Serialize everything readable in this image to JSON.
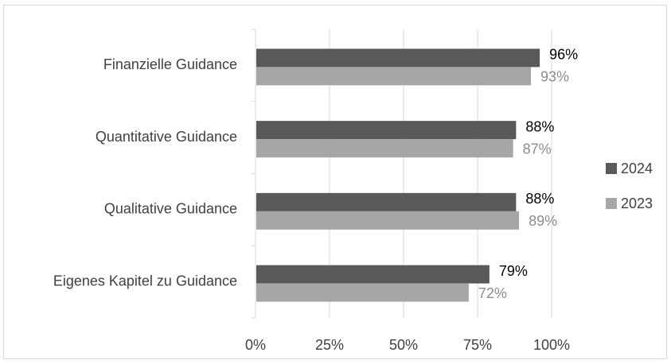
{
  "chart_data": {
    "type": "bar",
    "orientation": "horizontal",
    "categories": [
      "Finanzielle Guidance",
      "Quantitative Guidance",
      "Qualitative Guidance",
      "Eigenes Kapitel zu Guidance"
    ],
    "series": [
      {
        "name": "2024",
        "values": [
          96,
          88,
          88,
          79
        ],
        "value_labels": [
          "96%",
          "88%",
          "88%",
          "79%"
        ],
        "color": "#595959",
        "label_color": "#000000"
      },
      {
        "name": "2023",
        "values": [
          93,
          87,
          89,
          72
        ],
        "value_labels": [
          "93%",
          "87%",
          "89%",
          "72%"
        ],
        "color": "#a6a6a6",
        "label_color": "#8c8c8c"
      }
    ],
    "xlim": [
      0,
      100
    ],
    "x_ticks": [
      "0%",
      "25%",
      "50%",
      "75%",
      "100%"
    ],
    "x_tick_values": [
      0,
      25,
      50,
      75,
      100
    ],
    "grid": true,
    "legend_position": "right",
    "title": "",
    "xlabel": "",
    "ylabel": ""
  }
}
